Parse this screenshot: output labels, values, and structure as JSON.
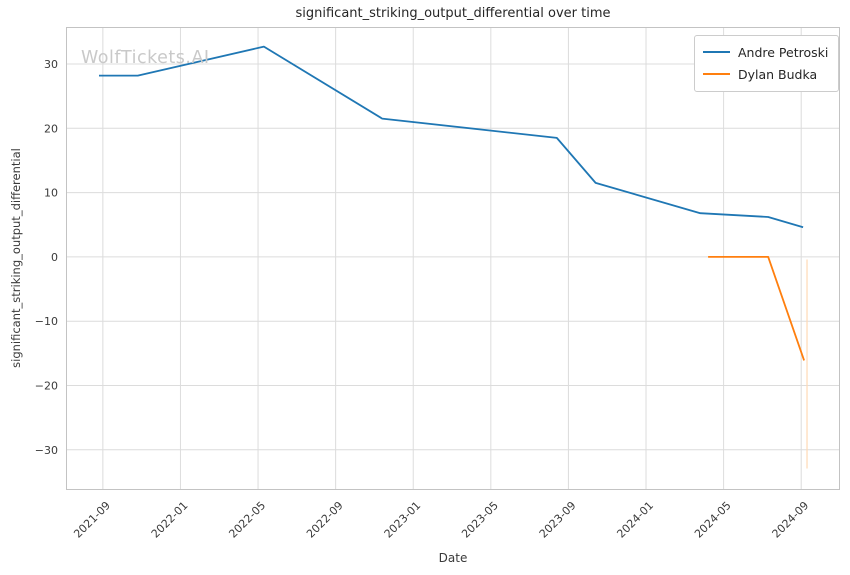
{
  "watermark": "WolfTickets.AI",
  "legend": {
    "items": [
      {
        "label": "Andre Petroski",
        "color": "#1f77b4"
      },
      {
        "label": "Dylan Budka",
        "color": "#ff7f0e"
      }
    ]
  },
  "chart_data": {
    "type": "line",
    "title": "significant_striking_output_differential over time",
    "xlabel": "Date",
    "ylabel": "significant_striking_output_differential",
    "grid": true,
    "legend_position": "upper right",
    "x_tick_labels": [
      "2021-09",
      "2022-01",
      "2022-05",
      "2022-09",
      "2023-01",
      "2023-05",
      "2023-09",
      "2024-01",
      "2024-05",
      "2024-09"
    ],
    "x_tick_months": [
      0,
      4,
      8,
      12,
      16,
      20,
      24,
      28,
      32,
      36
    ],
    "y_tick_labels": [
      "30",
      "20",
      "10",
      "0",
      "−10",
      "−20",
      "−30"
    ],
    "y_tick_values": [
      30,
      20,
      10,
      0,
      -10,
      -20,
      -30
    ],
    "x_range_months": [
      -1.9,
      38.0
    ],
    "y_range": [
      -36.25,
      35.75
    ],
    "series": [
      {
        "name": "Andre Petroski",
        "color": "#1f77b4",
        "points": [
          {
            "date": "2021-09",
            "month": -0.2,
            "value": 28.2
          },
          {
            "date": "2021-11",
            "month": 1.8,
            "value": 28.2
          },
          {
            "date": "2022-05",
            "month": 8.3,
            "value": 32.7
          },
          {
            "date": "2022-11",
            "month": 14.4,
            "value": 21.5
          },
          {
            "date": "2023-08",
            "month": 23.4,
            "value": 18.5
          },
          {
            "date": "2023-10",
            "month": 25.4,
            "value": 11.5
          },
          {
            "date": "2024-03",
            "month": 30.8,
            "value": 6.8
          },
          {
            "date": "2024-07",
            "month": 34.3,
            "value": 6.2
          },
          {
            "date": "2024-09",
            "month": 36.1,
            "value": 4.6
          }
        ]
      },
      {
        "name": "Dylan Budka",
        "color": "#ff7f0e",
        "points": [
          {
            "date": "2024-04",
            "month": 31.2,
            "value": 0
          },
          {
            "date": "2024-07",
            "month": 34.3,
            "value": 0
          },
          {
            "date": "2024-09",
            "month": 36.15,
            "value": -16.1
          }
        ]
      }
    ],
    "annotations": [
      {
        "type": "faint_vertical_line",
        "color": "#ffd9b5",
        "month": 36.3,
        "value_from": -0.4,
        "value_to": -32.9
      }
    ]
  }
}
